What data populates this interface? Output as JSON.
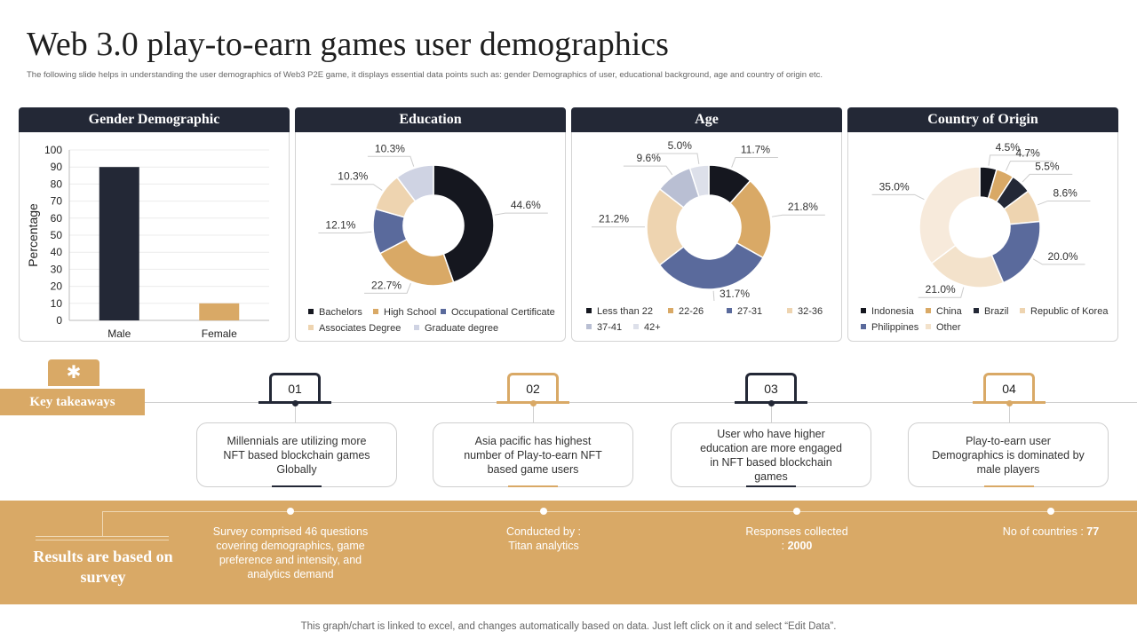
{
  "title": "Web 3.0 play-to-earn games user demographics",
  "subtitle": "The following slide helps in understanding the user demographics of Web3 P2E  game,  it displays essential data points such as: gender Demographics of user, educational background, age and country of origin etc.",
  "footer": "This graph/chart is linked to excel,  and changes automatically based on data. Just left click on it and select “Edit Data”.",
  "panels": {
    "gender": "Gender Demographic",
    "education": "Education",
    "age": "Age",
    "country": "Country of Origin"
  },
  "colors": {
    "dark": "#232836",
    "gold": "#d9a966",
    "slate": "#5a6a9c",
    "sand": "#eed4b0",
    "lilac": "#cfd3e3",
    "cream": "#f7eadb"
  },
  "chart_data": [
    {
      "type": "bar",
      "title": "Gender Demographic",
      "categories": [
        "Male",
        "Female"
      ],
      "values": [
        90,
        10
      ],
      "colors": [
        "#232836",
        "#d9a966"
      ],
      "ylabel": "Percentage",
      "xlabel": "",
      "ylim": [
        0,
        100
      ],
      "yticks": [
        "0",
        "10",
        "20",
        "30",
        "40",
        "50",
        "60",
        "70",
        "80",
        "90",
        "100"
      ]
    },
    {
      "type": "pie",
      "title": "Education",
      "donut": true,
      "slices": [
        {
          "label": "Bachelors",
          "value": 44.6,
          "text": "44.6%",
          "color": "#15171f"
        },
        {
          "label": "High School",
          "value": 22.7,
          "text": "22.7%",
          "color": "#d9a966"
        },
        {
          "label": "Occupational Certificate",
          "value": 12.1,
          "text": "12.1%",
          "color": "#5a6a9c"
        },
        {
          "label": "Associates Degree",
          "value": 10.3,
          "text": "10.3%",
          "color": "#eed4b0"
        },
        {
          "label": "Graduate degree",
          "value": 10.3,
          "text": "10.3%",
          "color": "#cfd3e3"
        }
      ]
    },
    {
      "type": "pie",
      "title": "Age",
      "donut": true,
      "slices": [
        {
          "label": "Less than 22",
          "value": 11.7,
          "text": "11.7%",
          "color": "#15171f"
        },
        {
          "label": "22-26",
          "value": 21.8,
          "text": "21.8%",
          "color": "#d9a966"
        },
        {
          "label": "27-31",
          "value": 31.7,
          "text": "31.7%",
          "color": "#5a6a9c"
        },
        {
          "label": "32-36",
          "value": 21.2,
          "text": "21.2%",
          "color": "#eed4b0"
        },
        {
          "label": "37-41",
          "value": 9.6,
          "text": "9.6%",
          "color": "#b9bfd3"
        },
        {
          "label": "42+",
          "value": 5.0,
          "text": "5.0%",
          "color": "#dde0ea"
        }
      ]
    },
    {
      "type": "pie",
      "title": "Country of Origin",
      "donut": true,
      "slices": [
        {
          "label": "Indonesia",
          "value": 4.5,
          "text": "4.5%",
          "color": "#15171f"
        },
        {
          "label": "China",
          "value": 4.7,
          "text": "4.7%",
          "color": "#d9a966"
        },
        {
          "label": "Brazil",
          "value": 5.5,
          "text": "5.5%",
          "color": "#232836"
        },
        {
          "label": "Republic of Korea",
          "value": 8.6,
          "text": "8.6%",
          "color": "#eed4b0"
        },
        {
          "label": "Philippines",
          "value": 20.0,
          "text": "20.0%",
          "color": "#5a6a9c"
        },
        {
          "label": "Other",
          "value": 21.0,
          "text": "21.0%",
          "color": "#f3e2cb"
        },
        {
          "label": "Other",
          "value": 35.0,
          "text": "35.0%",
          "color": "#f7eadb"
        }
      ]
    }
  ],
  "takeaways": {
    "label": "Key takeaways",
    "items": [
      {
        "num": "01",
        "text": "Millennials are utilizing more NFT based blockchain games Globally"
      },
      {
        "num": "02",
        "text": "Asia pacific has highest number of Play-to-earn NFT based game users"
      },
      {
        "num": "03",
        "text": "User who have higher education are more engaged in NFT based blockchain games"
      },
      {
        "num": "04",
        "text": "Play-to-earn user Demographics is dominated by male players"
      }
    ]
  },
  "survey": {
    "label": "Results are based on survey",
    "item1": "Survey comprised 46 questions covering demographics, game preference  and intensity, and analytics demand",
    "item2_prefix": "Conducted by :",
    "item2_value": "Titan analytics",
    "item3_prefix": "Responses collected :",
    "item3_value": "2000",
    "item4_prefix": "No of countries :",
    "item4_value": "77"
  }
}
